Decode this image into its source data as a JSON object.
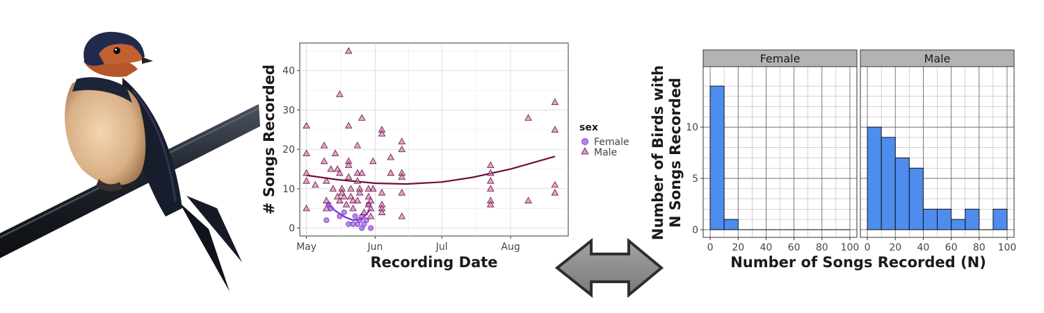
{
  "chart_data": [
    {
      "type": "scatter",
      "xlabel": "Recording Date",
      "ylabel": "# Songs Recorded",
      "xlim": [
        "2023-04-28",
        "2023-08-27"
      ],
      "ylim": [
        -2,
        47
      ],
      "x_ticks": [
        {
          "date": "2023-05-01",
          "label": "May"
        },
        {
          "date": "2023-06-01",
          "label": "Jun"
        },
        {
          "date": "2023-07-01",
          "label": "Jul"
        },
        {
          "date": "2023-08-01",
          "label": "Aug"
        }
      ],
      "y_ticks": [
        0,
        10,
        20,
        30,
        40
      ],
      "grid": true,
      "legend": {
        "title": "sex",
        "position": "right",
        "entries": [
          "Female",
          "Male"
        ]
      },
      "series": [
        {
          "name": "Female",
          "marker": "circle",
          "color": "#9b59e8",
          "points": [
            {
              "x": "2023-05-10",
              "y": 2
            },
            {
              "x": "2023-05-11",
              "y": 6
            },
            {
              "x": "2023-05-12",
              "y": 5
            },
            {
              "x": "2023-05-16",
              "y": 3
            },
            {
              "x": "2023-05-18",
              "y": 4
            },
            {
              "x": "2023-05-20",
              "y": 1
            },
            {
              "x": "2023-05-22",
              "y": 1
            },
            {
              "x": "2023-05-23",
              "y": 3
            },
            {
              "x": "2023-05-24",
              "y": 1
            },
            {
              "x": "2023-05-25",
              "y": 2
            },
            {
              "x": "2023-05-26",
              "y": 3
            },
            {
              "x": "2023-05-26",
              "y": 0
            },
            {
              "x": "2023-05-27",
              "y": 1
            },
            {
              "x": "2023-05-28",
              "y": 2
            },
            {
              "x": "2023-05-29",
              "y": 6
            },
            {
              "x": "2023-05-30",
              "y": 0
            }
          ],
          "trend": [
            {
              "x": "2023-05-10",
              "y": 6.5
            },
            {
              "x": "2023-05-14",
              "y": 4.4
            },
            {
              "x": "2023-05-18",
              "y": 2.9
            },
            {
              "x": "2023-05-22",
              "y": 2.0
            },
            {
              "x": "2023-05-26",
              "y": 2.2
            },
            {
              "x": "2023-05-30",
              "y": 4.8
            }
          ]
        },
        {
          "name": "Male",
          "marker": "triangle",
          "color": "#c77bb0",
          "points": [
            {
              "x": "2023-05-01",
              "y": 26
            },
            {
              "x": "2023-05-01",
              "y": 19
            },
            {
              "x": "2023-05-01",
              "y": 14
            },
            {
              "x": "2023-05-01",
              "y": 12
            },
            {
              "x": "2023-05-01",
              "y": 5
            },
            {
              "x": "2023-05-05",
              "y": 11
            },
            {
              "x": "2023-05-09",
              "y": 21
            },
            {
              "x": "2023-05-09",
              "y": 17
            },
            {
              "x": "2023-05-10",
              "y": 12
            },
            {
              "x": "2023-05-10",
              "y": 7
            },
            {
              "x": "2023-05-10",
              "y": 5
            },
            {
              "x": "2023-05-12",
              "y": 15
            },
            {
              "x": "2023-05-13",
              "y": 10
            },
            {
              "x": "2023-05-14",
              "y": 19
            },
            {
              "x": "2023-05-15",
              "y": 15
            },
            {
              "x": "2023-05-15",
              "y": 8
            },
            {
              "x": "2023-05-16",
              "y": 34
            },
            {
              "x": "2023-05-16",
              "y": 14
            },
            {
              "x": "2023-05-16",
              "y": 7
            },
            {
              "x": "2023-05-17",
              "y": 10
            },
            {
              "x": "2023-05-17",
              "y": 9
            },
            {
              "x": "2023-05-18",
              "y": 8
            },
            {
              "x": "2023-05-19",
              "y": 6
            },
            {
              "x": "2023-05-20",
              "y": 45
            },
            {
              "x": "2023-05-20",
              "y": 26
            },
            {
              "x": "2023-05-20",
              "y": 17
            },
            {
              "x": "2023-05-20",
              "y": 16
            },
            {
              "x": "2023-05-20",
              "y": 13
            },
            {
              "x": "2023-05-21",
              "y": 10
            },
            {
              "x": "2023-05-21",
              "y": 8
            },
            {
              "x": "2023-05-22",
              "y": 7
            },
            {
              "x": "2023-05-22",
              "y": 5
            },
            {
              "x": "2023-05-24",
              "y": 21
            },
            {
              "x": "2023-05-24",
              "y": 14
            },
            {
              "x": "2023-05-24",
              "y": 12
            },
            {
              "x": "2023-05-24",
              "y": 7
            },
            {
              "x": "2023-05-25",
              "y": 10
            },
            {
              "x": "2023-05-25",
              "y": 9
            },
            {
              "x": "2023-05-26",
              "y": 28
            },
            {
              "x": "2023-05-26",
              "y": 14
            },
            {
              "x": "2023-05-27",
              "y": 4
            },
            {
              "x": "2023-05-29",
              "y": 10
            },
            {
              "x": "2023-05-29",
              "y": 8
            },
            {
              "x": "2023-05-29",
              "y": 6
            },
            {
              "x": "2023-05-30",
              "y": 7
            },
            {
              "x": "2023-05-30",
              "y": 5
            },
            {
              "x": "2023-05-30",
              "y": 3
            },
            {
              "x": "2023-05-31",
              "y": 17
            },
            {
              "x": "2023-05-31",
              "y": 10
            },
            {
              "x": "2023-06-04",
              "y": 25
            },
            {
              "x": "2023-06-04",
              "y": 24
            },
            {
              "x": "2023-06-04",
              "y": 9
            },
            {
              "x": "2023-06-04",
              "y": 6
            },
            {
              "x": "2023-06-04",
              "y": 5
            },
            {
              "x": "2023-06-04",
              "y": 4
            },
            {
              "x": "2023-06-08",
              "y": 14
            },
            {
              "x": "2023-06-08",
              "y": 18
            },
            {
              "x": "2023-06-13",
              "y": 22
            },
            {
              "x": "2023-06-13",
              "y": 20
            },
            {
              "x": "2023-06-13",
              "y": 14
            },
            {
              "x": "2023-06-13",
              "y": 13
            },
            {
              "x": "2023-06-13",
              "y": 9
            },
            {
              "x": "2023-06-13",
              "y": 3
            },
            {
              "x": "2023-07-23",
              "y": 16
            },
            {
              "x": "2023-07-23",
              "y": 14
            },
            {
              "x": "2023-07-23",
              "y": 12
            },
            {
              "x": "2023-07-23",
              "y": 10
            },
            {
              "x": "2023-07-23",
              "y": 7
            },
            {
              "x": "2023-07-23",
              "y": 6
            },
            {
              "x": "2023-08-09",
              "y": 28
            },
            {
              "x": "2023-08-09",
              "y": 7
            },
            {
              "x": "2023-08-21",
              "y": 32
            },
            {
              "x": "2023-08-21",
              "y": 25
            },
            {
              "x": "2023-08-21",
              "y": 11
            },
            {
              "x": "2023-08-21",
              "y": 9
            }
          ],
          "trend": [
            {
              "x": "2023-05-01",
              "y": 13.4
            },
            {
              "x": "2023-05-15",
              "y": 12.3
            },
            {
              "x": "2023-06-01",
              "y": 11.4
            },
            {
              "x": "2023-06-15",
              "y": 11.2
            },
            {
              "x": "2023-07-01",
              "y": 11.7
            },
            {
              "x": "2023-07-15",
              "y": 12.9
            },
            {
              "x": "2023-08-01",
              "y": 15.0
            },
            {
              "x": "2023-08-21",
              "y": 18.2
            }
          ]
        }
      ]
    },
    {
      "type": "bar",
      "subtype": "histogram",
      "xlabel": "Number of Songs Recorded (N)",
      "ylabel": "Number of Birds with\nN Songs Recorded",
      "ylabel_lines": [
        "Number of Birds with",
        "N Songs Recorded"
      ],
      "xlim": [
        -5,
        105
      ],
      "ylim": [
        -0.75,
        15.9
      ],
      "x_ticks": [
        0,
        20,
        40,
        60,
        80,
        100
      ],
      "y_ticks": [
        0,
        5,
        10
      ],
      "bin_width": 10,
      "bar_color": "#4e8ded",
      "grid": true,
      "panels": [
        {
          "name": "Female",
          "bins": [
            {
              "x_start": 0,
              "x_end": 10,
              "count": 14
            },
            {
              "x_start": 10,
              "x_end": 20,
              "count": 1
            },
            {
              "x_start": 20,
              "x_end": 30,
              "count": 0
            },
            {
              "x_start": 30,
              "x_end": 40,
              "count": 0
            },
            {
              "x_start": 40,
              "x_end": 50,
              "count": 0
            },
            {
              "x_start": 50,
              "x_end": 60,
              "count": 0
            },
            {
              "x_start": 60,
              "x_end": 70,
              "count": 0
            },
            {
              "x_start": 70,
              "x_end": 80,
              "count": 0
            },
            {
              "x_start": 80,
              "x_end": 90,
              "count": 0
            },
            {
              "x_start": 90,
              "x_end": 100,
              "count": 0
            }
          ]
        },
        {
          "name": "Male",
          "bins": [
            {
              "x_start": 0,
              "x_end": 10,
              "count": 10
            },
            {
              "x_start": 10,
              "x_end": 20,
              "count": 9
            },
            {
              "x_start": 20,
              "x_end": 30,
              "count": 7
            },
            {
              "x_start": 30,
              "x_end": 40,
              "count": 6
            },
            {
              "x_start": 40,
              "x_end": 50,
              "count": 2
            },
            {
              "x_start": 50,
              "x_end": 60,
              "count": 2
            },
            {
              "x_start": 60,
              "x_end": 70,
              "count": 1
            },
            {
              "x_start": 70,
              "x_end": 80,
              "count": 2
            },
            {
              "x_start": 80,
              "x_end": 90,
              "count": 0
            },
            {
              "x_start": 90,
              "x_end": 100,
              "count": 2
            }
          ]
        }
      ]
    }
  ],
  "icons": {
    "bird": "barn-swallow-illustration",
    "arrow": "double-headed-arrow"
  },
  "colors": {
    "female_trend": "#7b2fd0",
    "male_trend": "#6e0b3e",
    "arrow_fill": "#8a8a8a",
    "strip_bg": "#b3b3b3"
  }
}
